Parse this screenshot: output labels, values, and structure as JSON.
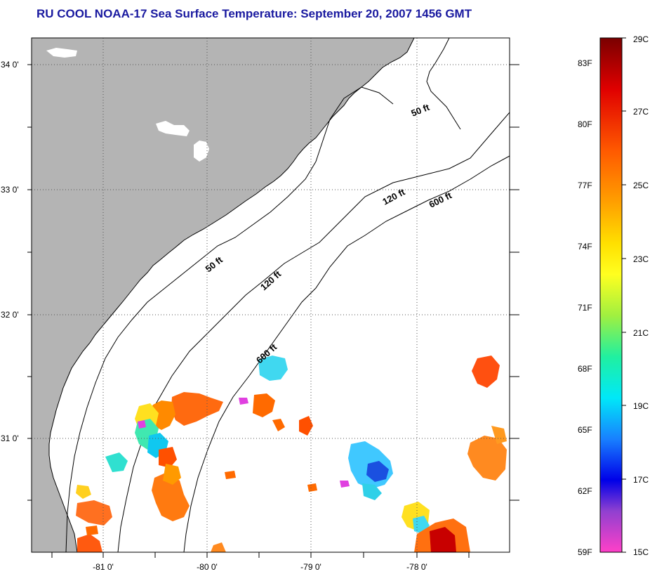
{
  "title": "RU COOL  NOAA-17  Sea Surface Temperature:  September 20, 2007 1456 GMT",
  "lat_labels": [
    "34 0'",
    "33 0'",
    "32 0'",
    "31 0'"
  ],
  "lon_labels": [
    "-81 0'",
    "-80 0'",
    "-79 0'",
    "-78 0'"
  ],
  "contours": [
    "50 ft",
    "120 ft",
    "600 ft",
    "50 ft",
    "120 ft",
    "600 ft"
  ],
  "colorbar": {
    "f_labels": [
      "83F",
      "80F",
      "77F",
      "74F",
      "71F",
      "68F",
      "65F",
      "62F",
      "59F"
    ],
    "c_labels": [
      "29C",
      "27C",
      "25C",
      "23C",
      "21C",
      "19C",
      "17C",
      "15C"
    ],
    "colors": [
      "#8b0000",
      "#e00000",
      "#ff6a00",
      "#ffc000",
      "#ffff00",
      "#a8f030",
      "#20f0a0",
      "#00f0f0",
      "#1c7cff",
      "#0000e0",
      "#b040d0",
      "#ff40c0"
    ]
  },
  "colors": {
    "land": "#b4b4b4",
    "ocean": "#ffffff",
    "title": "#1a1aa0"
  }
}
